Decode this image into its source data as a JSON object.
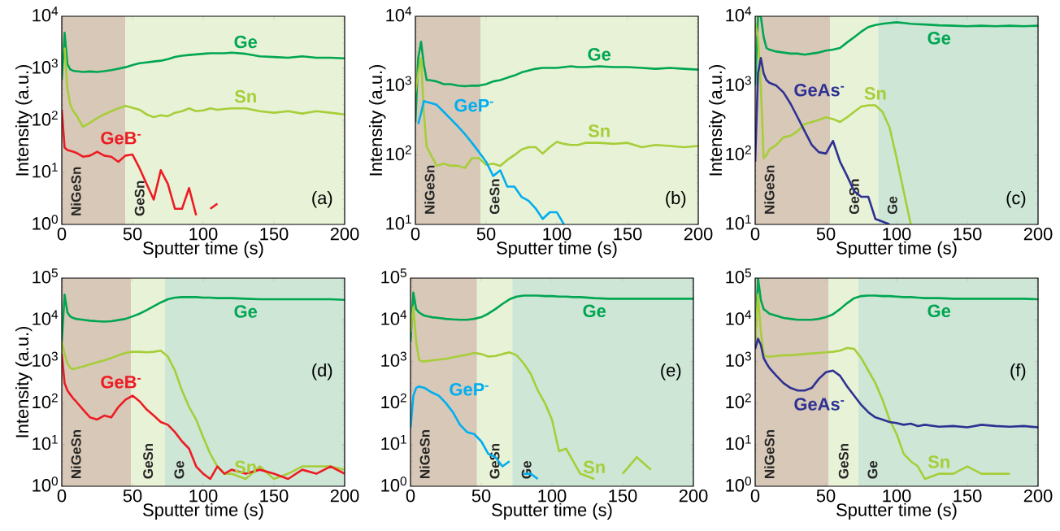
{
  "chart_data": [
    {
      "type": "line",
      "log": true,
      "xlabel": "Sputter time (s)",
      "ylabel": "Intensity (a.u.)",
      "xlim": [
        0,
        200
      ],
      "xticks": [
        0,
        50,
        100,
        150,
        200
      ],
      "ylim": [
        1,
        10000
      ],
      "yticks": [
        {
          "value": 1,
          "label": "10$^{0}$"
        },
        {
          "value": 10,
          "label": "10$^{1}$"
        },
        {
          "value": 100,
          "label": "10$^{2}$"
        },
        {
          "value": 1000,
          "label": "10$^{3}$"
        },
        {
          "value": 10000,
          "label": "10$^{4}$"
        }
      ],
      "annotations": [
        "(a)"
      ],
      "x": [
        0,
        2,
        4,
        6,
        8,
        10,
        15,
        20,
        25,
        30,
        35,
        40,
        45,
        50,
        55,
        60,
        65,
        70,
        75,
        80,
        85,
        90,
        95,
        100,
        105,
        110,
        115,
        120,
        130,
        140,
        150,
        160,
        170,
        180,
        190,
        200
      ],
      "bands": [
        {
          "axis": "x",
          "from": 0,
          "to": 45,
          "label": "NiGeSn",
          "color": "#d8c8b8"
        },
        {
          "axis": "x",
          "from": 45,
          "to": 200,
          "label": "GeSn",
          "color": "#e8f2d6"
        }
      ],
      "series": [
        {
          "name": "Ge",
          "color": "#00a651",
          "values": [
            600,
            4800,
            1200,
            950,
            900,
            880,
            850,
            870,
            850,
            880,
            920,
            980,
            1050,
            1150,
            1250,
            1300,
            1350,
            1400,
            1500,
            1650,
            1750,
            1800,
            1850,
            1900,
            1950,
            1950,
            1950,
            2000,
            1900,
            1700,
            1650,
            1600,
            1700,
            1600,
            1600,
            1550
          ]
        },
        {
          "name": "Sn",
          "color": "#a6ce39",
          "values": [
            null,
            2500,
            400,
            200,
            150,
            130,
            75,
            90,
            110,
            130,
            150,
            170,
            190,
            175,
            160,
            130,
            115,
            125,
            120,
            140,
            150,
            170,
            150,
            155,
            170,
            160,
            165,
            170,
            170,
            150,
            140,
            150,
            135,
            150,
            140,
            130
          ]
        },
        {
          "name": "GeB$^{-}$",
          "color": "#ed1c24",
          "values": [
            160,
            30,
            27,
            26,
            25,
            24,
            20,
            21,
            25,
            21,
            20,
            16,
            21,
            22,
            12,
            6,
            3,
            11,
            6,
            2,
            2,
            5,
            1.5,
            null,
            2,
            2.5,
            null,
            null,
            null,
            null,
            null,
            null,
            null,
            null,
            null,
            null
          ]
        }
      ]
    },
    {
      "type": "line",
      "log": true,
      "xlabel": "Sputter time (s)",
      "ylabel": "Intensity (a.u.)",
      "xlim": [
        0,
        200
      ],
      "xticks": [
        0,
        50,
        100,
        150,
        200
      ],
      "ylim": [
        10,
        10000
      ],
      "yticks": [
        {
          "value": 10,
          "label": "10$^{1}$"
        },
        {
          "value": 100,
          "label": "10$^{2}$"
        },
        {
          "value": 1000,
          "label": "10$^{3}$"
        },
        {
          "value": 10000,
          "label": "10$^{4}$"
        }
      ],
      "annotations": [
        "(b)"
      ],
      "x": [
        0,
        2,
        4,
        6,
        8,
        10,
        15,
        20,
        25,
        30,
        35,
        40,
        45,
        50,
        55,
        60,
        65,
        70,
        75,
        80,
        85,
        90,
        95,
        100,
        105,
        110,
        115,
        120,
        130,
        140,
        150,
        160,
        170,
        180,
        190,
        200
      ],
      "bands": [
        {
          "axis": "x",
          "from": 0,
          "to": 46,
          "label": "NiGeSn",
          "color": "#d8c8b8"
        },
        {
          "axis": "x",
          "from": 46,
          "to": 200,
          "label": "GeSn",
          "color": "#e8f2d6"
        }
      ],
      "series": [
        {
          "name": "Ge",
          "color": "#00a651",
          "values": [
            300,
            2500,
            4300,
            2000,
            1200,
            1200,
            1150,
            1050,
            1050,
            1000,
            980,
            1000,
            1000,
            1050,
            1150,
            1200,
            1300,
            1400,
            1550,
            1650,
            1750,
            1800,
            1800,
            1800,
            1850,
            1900,
            1850,
            1850,
            1900,
            1850,
            1850,
            1800,
            1750,
            1800,
            1750,
            1700
          ]
        },
        {
          "name": "Sn",
          "color": "#a6ce39",
          "values": [
            800,
            1500,
            2500,
            400,
            130,
            110,
            70,
            75,
            70,
            70,
            65,
            90,
            90,
            72,
            75,
            70,
            85,
            100,
            120,
            130,
            130,
            105,
            130,
            155,
            145,
            140,
            140,
            150,
            150,
            145,
            150,
            130,
            140,
            135,
            130,
            135
          ]
        },
        {
          "name": "GeP$^{-}$",
          "color": "#00aeef",
          "values": [
            null,
            280,
            400,
            600,
            580,
            570,
            530,
            420,
            330,
            260,
            200,
            150,
            110,
            80,
            50,
            60,
            35,
            35,
            25,
            22,
            17,
            12,
            15,
            15,
            10,
            null,
            null,
            null,
            null,
            null,
            null,
            null,
            null,
            null,
            null,
            null
          ]
        }
      ]
    },
    {
      "type": "line",
      "log": true,
      "xlabel": "Sputter time (s)",
      "ylabel": "Intensity (a.u.)",
      "xlim": [
        0,
        200
      ],
      "xticks": [
        0,
        50,
        100,
        150,
        200
      ],
      "ylim": [
        10,
        10000
      ],
      "yticks": [
        {
          "value": 10,
          "label": "10$^{1}$"
        },
        {
          "value": 100,
          "label": "10$^{2}$"
        },
        {
          "value": 1000,
          "label": "10$^{3}$"
        },
        {
          "value": 10000,
          "label": "10$^{4}$"
        }
      ],
      "annotations": [
        "(c)"
      ],
      "x": [
        0,
        2,
        4,
        6,
        8,
        10,
        15,
        20,
        25,
        30,
        35,
        40,
        45,
        50,
        55,
        60,
        65,
        70,
        75,
        80,
        85,
        90,
        95,
        100,
        105,
        110,
        115,
        120,
        130,
        140,
        150,
        160,
        170,
        180,
        190,
        200
      ],
      "bands": [
        {
          "axis": "x",
          "from": 0,
          "to": 53,
          "label": "NiGeSn",
          "color": "#d8c8b8"
        },
        {
          "axis": "x",
          "from": 53,
          "to": 87,
          "label": "GeSn",
          "color": "#e8f2d6"
        },
        {
          "axis": "x",
          "from": 87,
          "to": 200,
          "label": "Ge",
          "color": "#cde6d6"
        }
      ],
      "series": [
        {
          "name": "Ge",
          "color": "#00a651",
          "values": [
            1000,
            10000,
            10000,
            5000,
            3500,
            3300,
            3100,
            3000,
            2900,
            2900,
            2800,
            2900,
            3000,
            3200,
            3300,
            3500,
            4200,
            5000,
            6000,
            7000,
            7500,
            7800,
            8000,
            8200,
            8000,
            7800,
            7700,
            7600,
            7400,
            7300,
            7200,
            7300,
            7200,
            7300,
            7200,
            7300
          ]
        },
        {
          "name": "Sn",
          "color": "#a6ce39",
          "values": [
            8000,
            5000,
            1000,
            90,
            100,
            120,
            140,
            180,
            190,
            220,
            280,
            300,
            320,
            350,
            330,
            300,
            350,
            420,
            500,
            520,
            520,
            420,
            250,
            90,
            30,
            10,
            null,
            null,
            null,
            null,
            null,
            null,
            null,
            null,
            null,
            null
          ]
        },
        {
          "name": "GeAs$^{-}$",
          "color": "#2e3192",
          "values": [
            80,
            1500,
            2500,
            1500,
            1200,
            1100,
            1000,
            800,
            550,
            350,
            220,
            140,
            110,
            105,
            160,
            80,
            50,
            30,
            25,
            25,
            12,
            11,
            10,
            null,
            null,
            null,
            null,
            null,
            null,
            null,
            null,
            null,
            null,
            null,
            null,
            null
          ]
        }
      ]
    },
    {
      "type": "line",
      "log": true,
      "xlabel": "Sputter time (s)",
      "ylabel": "Intensity (a.u.)",
      "xlim": [
        0,
        200
      ],
      "xticks": [
        0,
        50,
        100,
        150,
        200
      ],
      "ylim": [
        1,
        100000
      ],
      "yticks": [
        {
          "value": 1,
          "label": "10$^{0}$"
        },
        {
          "value": 10,
          "label": "10$^{1}$"
        },
        {
          "value": 100,
          "label": "10$^{2}$"
        },
        {
          "value": 1000,
          "label": "10$^{3}$"
        },
        {
          "value": 10000,
          "label": "10$^{4}$"
        },
        {
          "value": 100000,
          "label": "10$^{5}$"
        }
      ],
      "annotations": [
        "(d)"
      ],
      "x": [
        0,
        2,
        4,
        6,
        8,
        10,
        15,
        20,
        25,
        30,
        35,
        40,
        45,
        50,
        55,
        60,
        65,
        70,
        75,
        80,
        85,
        90,
        95,
        100,
        105,
        110,
        115,
        120,
        130,
        140,
        150,
        160,
        170,
        180,
        190,
        200
      ],
      "bands": [
        {
          "axis": "x",
          "from": 0,
          "to": 49,
          "label": "NiGeSn",
          "color": "#d8c8b8"
        },
        {
          "axis": "x",
          "from": 49,
          "to": 73,
          "label": "GeSn",
          "color": "#e8f2d6"
        },
        {
          "axis": "x",
          "from": 73,
          "to": 200,
          "label": "Ge",
          "color": "#cde6d6"
        }
      ],
      "series": [
        {
          "name": "Ge",
          "color": "#00a651",
          "values": [
            3000,
            40000,
            15000,
            12000,
            11000,
            10500,
            10000,
            9500,
            9200,
            9000,
            9200,
            9800,
            10500,
            12000,
            14000,
            17000,
            21000,
            26000,
            31000,
            34000,
            35000,
            35000,
            35000,
            34000,
            34000,
            33000,
            33000,
            33000,
            32000,
            31000,
            31000,
            31000,
            31000,
            31000,
            31000,
            30000
          ]
        },
        {
          "name": "Sn",
          "color": "#a6ce39",
          "values": [
            3000,
            1500,
            900,
            700,
            650,
            680,
            750,
            850,
            950,
            1050,
            1200,
            1400,
            1600,
            1700,
            1700,
            1650,
            1700,
            1800,
            1300,
            600,
            200,
            80,
            40,
            15,
            6,
            3,
            2,
            2,
            1.5,
            3,
            1.5,
            2,
            3,
            3,
            3,
            2.5
          ]
        },
        {
          "name": "GeB$^{-}$",
          "color": "#ed1c24",
          "values": [
            1500,
            300,
            200,
            160,
            130,
            110,
            70,
            45,
            40,
            50,
            45,
            80,
            120,
            150,
            110,
            70,
            50,
            35,
            30,
            20,
            12,
            8,
            3,
            2,
            1.5,
            3,
            2,
            2.5,
            2,
            2.5,
            2,
            1.5,
            2.5,
            2,
            3,
            2
          ]
        }
      ]
    },
    {
      "type": "line",
      "log": true,
      "xlabel": "Sputter time (s)",
      "xlim": [
        0,
        200
      ],
      "xticks": [
        0,
        50,
        100,
        150,
        200
      ],
      "ylim": [
        1,
        100000
      ],
      "yticks": [
        {
          "value": 1,
          "label": "10$^{0}$"
        },
        {
          "value": 10,
          "label": "10$^{1}$"
        },
        {
          "value": 100,
          "label": "10$^{2}$"
        },
        {
          "value": 1000,
          "label": "10$^{3}$"
        },
        {
          "value": 10000,
          "label": "10$^{4}$"
        },
        {
          "value": 100000,
          "label": "10$^{5}$"
        }
      ],
      "annotations": [
        "(e)"
      ],
      "x": [
        0,
        2,
        4,
        6,
        8,
        10,
        15,
        20,
        25,
        30,
        35,
        40,
        45,
        50,
        55,
        60,
        65,
        70,
        75,
        80,
        85,
        90,
        95,
        100,
        105,
        110,
        115,
        120,
        130,
        140,
        150,
        160,
        170,
        180,
        190,
        200
      ],
      "bands": [
        {
          "axis": "x",
          "from": 0,
          "to": 47,
          "label": "NiGeSn",
          "color": "#d8c8b8"
        },
        {
          "axis": "x",
          "from": 47,
          "to": 72,
          "label": "GeSn",
          "color": "#e8f2d6"
        },
        {
          "axis": "x",
          "from": 72,
          "to": 200,
          "label": "Ge",
          "color": "#cde6d6"
        }
      ],
      "series": [
        {
          "name": "Ge",
          "color": "#00a651",
          "values": [
            3000,
            45000,
            18000,
            15000,
            13500,
            12500,
            11500,
            11000,
            10500,
            10200,
            10000,
            10000,
            10500,
            11500,
            14000,
            18000,
            24000,
            31000,
            36000,
            38000,
            38000,
            38000,
            37000,
            37000,
            36000,
            36000,
            35000,
            35000,
            33000,
            32000,
            32000,
            32000,
            32000,
            32000,
            32000,
            32000
          ]
        },
        {
          "name": "Sn",
          "color": "#a6ce39",
          "values": [
            5000,
            20000,
            3000,
            1100,
            1000,
            1000,
            1050,
            1100,
            1150,
            1250,
            1350,
            1450,
            1600,
            1500,
            1300,
            1350,
            1500,
            1650,
            1400,
            900,
            500,
            200,
            100,
            40,
            7,
            8,
            4,
            2,
            1.5,
            null,
            2,
            5,
            2.5,
            null,
            null,
            null
          ]
        },
        {
          "name": "GeP$^{-}$",
          "color": "#00aeef",
          "values": [
            25,
            150,
            230,
            250,
            240,
            230,
            180,
            150,
            100,
            60,
            30,
            20,
            18,
            12,
            6,
            5,
            3,
            4,
            null,
            2,
            2,
            1.5,
            null,
            null,
            null,
            null,
            null,
            null,
            null,
            null,
            null,
            null,
            null,
            null,
            null,
            null
          ]
        }
      ]
    },
    {
      "type": "line",
      "log": true,
      "xlabel": "Sputter time (s)",
      "xlim": [
        0,
        200
      ],
      "xticks": [
        0,
        50,
        100,
        150,
        200
      ],
      "ylim": [
        1,
        100000
      ],
      "yticks": [
        {
          "value": 1,
          "label": "10$^{0}$"
        },
        {
          "value": 10,
          "label": "10$^{1}$"
        },
        {
          "value": 100,
          "label": "10$^{2}$"
        },
        {
          "value": 1000,
          "label": "10$^{3}$"
        },
        {
          "value": 10000,
          "label": "10$^{4}$"
        },
        {
          "value": 100000,
          "label": "10$^{5}$"
        }
      ],
      "annotations": [
        "(f)"
      ],
      "x": [
        0,
        2,
        4,
        6,
        8,
        10,
        15,
        20,
        25,
        30,
        35,
        40,
        45,
        50,
        55,
        60,
        65,
        70,
        75,
        80,
        85,
        90,
        95,
        100,
        105,
        110,
        115,
        120,
        130,
        140,
        150,
        160,
        170,
        180,
        190,
        200
      ],
      "bands": [
        {
          "axis": "x",
          "from": 0,
          "to": 52,
          "label": "NiGeSn",
          "color": "#d8c8b8"
        },
        {
          "axis": "x",
          "from": 52,
          "to": 73,
          "label": "GeSn",
          "color": "#e8f2d6"
        },
        {
          "axis": "x",
          "from": 73,
          "to": 200,
          "label": "Ge",
          "color": "#cde6d6"
        }
      ],
      "series": [
        {
          "name": "Ge",
          "color": "#00a651",
          "values": [
            3000,
            100000,
            30000,
            18000,
            16000,
            14000,
            12500,
            11000,
            10500,
            10000,
            10000,
            10000,
            10500,
            11500,
            13500,
            18000,
            25000,
            33000,
            37000,
            38000,
            38000,
            37000,
            37000,
            36000,
            35000,
            35000,
            34000,
            33000,
            33000,
            32000,
            32000,
            32000,
            32000,
            32000,
            32000,
            31000
          ]
        },
        {
          "name": "Sn",
          "color": "#a6ce39",
          "values": [
            3000,
            40000,
            5000,
            1500,
            1300,
            1300,
            1350,
            1400,
            1400,
            1450,
            1500,
            1550,
            1600,
            1650,
            1700,
            1800,
            2100,
            2000,
            1200,
            600,
            300,
            120,
            40,
            18,
            6,
            4,
            3,
            1.5,
            2,
            2,
            3,
            2,
            2,
            2,
            null,
            null
          ]
        },
        {
          "name": "GeAs$^{-}$",
          "color": "#2e3192",
          "values": [
            2000,
            3500,
            2500,
            1200,
            900,
            700,
            450,
            300,
            230,
            200,
            200,
            230,
            380,
            550,
            600,
            450,
            250,
            150,
            90,
            60,
            45,
            40,
            35,
            33,
            30,
            32,
            28,
            30,
            27,
            28,
            26,
            30,
            28,
            27,
            28,
            26
          ]
        }
      ]
    }
  ]
}
